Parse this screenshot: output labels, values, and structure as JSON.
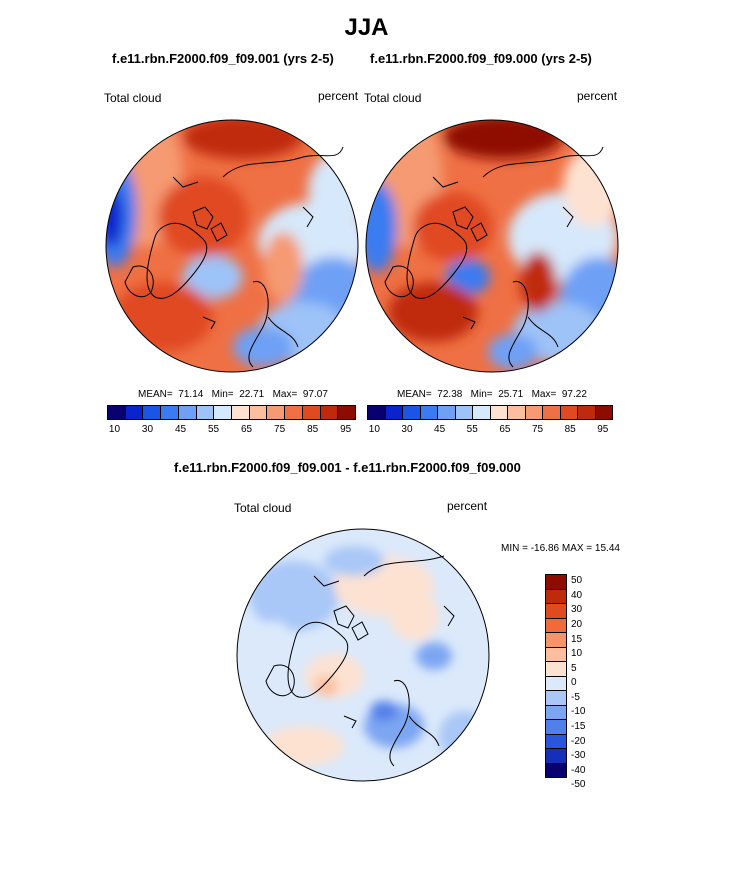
{
  "header": {
    "title": "JJA",
    "diff_title": "f.e11.rbn.F2000.f09_f09.001 - f.e11.rbn.F2000.f09_f09.000"
  },
  "panels": [
    {
      "subtitle": "f.e11.rbn.F2000.f09_f09.001 (yrs 2-5)",
      "field": "Total cloud",
      "units": "percent",
      "stats": {
        "mean_label": "MEAN=",
        "mean": "71.14",
        "min_label": "Min=",
        "min": "22.71",
        "max_label": "Max=",
        "max": "97.07"
      }
    },
    {
      "subtitle": "f.e11.rbn.F2000.f09_f09.000 (yrs 2-5)",
      "field": "Total cloud",
      "units": "percent",
      "stats": {
        "mean_label": "MEAN=",
        "mean": "72.38",
        "min_label": "Min=",
        "min": "25.71",
        "max_label": "Max=",
        "max": "97.22"
      }
    }
  ],
  "diff_panel": {
    "field": "Total cloud",
    "units": "percent",
    "stats": "MIN = -16.86 MAX =  15.44"
  },
  "colorbar_abs": {
    "colors": [
      "#08006e",
      "#0a24cd",
      "#1a55e8",
      "#3b7bf0",
      "#6ea0f5",
      "#9ec3f8",
      "#d6e8fb",
      "#fde2d2",
      "#fbbfa0",
      "#f59a72",
      "#ef7044",
      "#e04a20",
      "#c02a0c",
      "#8e0b00"
    ],
    "ticks": [
      "10",
      "30",
      "45",
      "55",
      "65",
      "75",
      "85",
      "95"
    ]
  },
  "colorbar_diff": {
    "colors": [
      "#8e0b00",
      "#c02a0c",
      "#e04a20",
      "#f26a3a",
      "#f7956a",
      "#fbbfa0",
      "#fde2d2",
      "#dbe9fb",
      "#a9c7f7",
      "#7da6f2",
      "#5280ea",
      "#2a56dc",
      "#1530b8",
      "#08006e"
    ],
    "ticks": [
      "50",
      "40",
      "30",
      "20",
      "15",
      "10",
      "5",
      "0",
      "-5",
      "-10",
      "-15",
      "-20",
      "-30",
      "-40",
      "-50"
    ]
  }
}
